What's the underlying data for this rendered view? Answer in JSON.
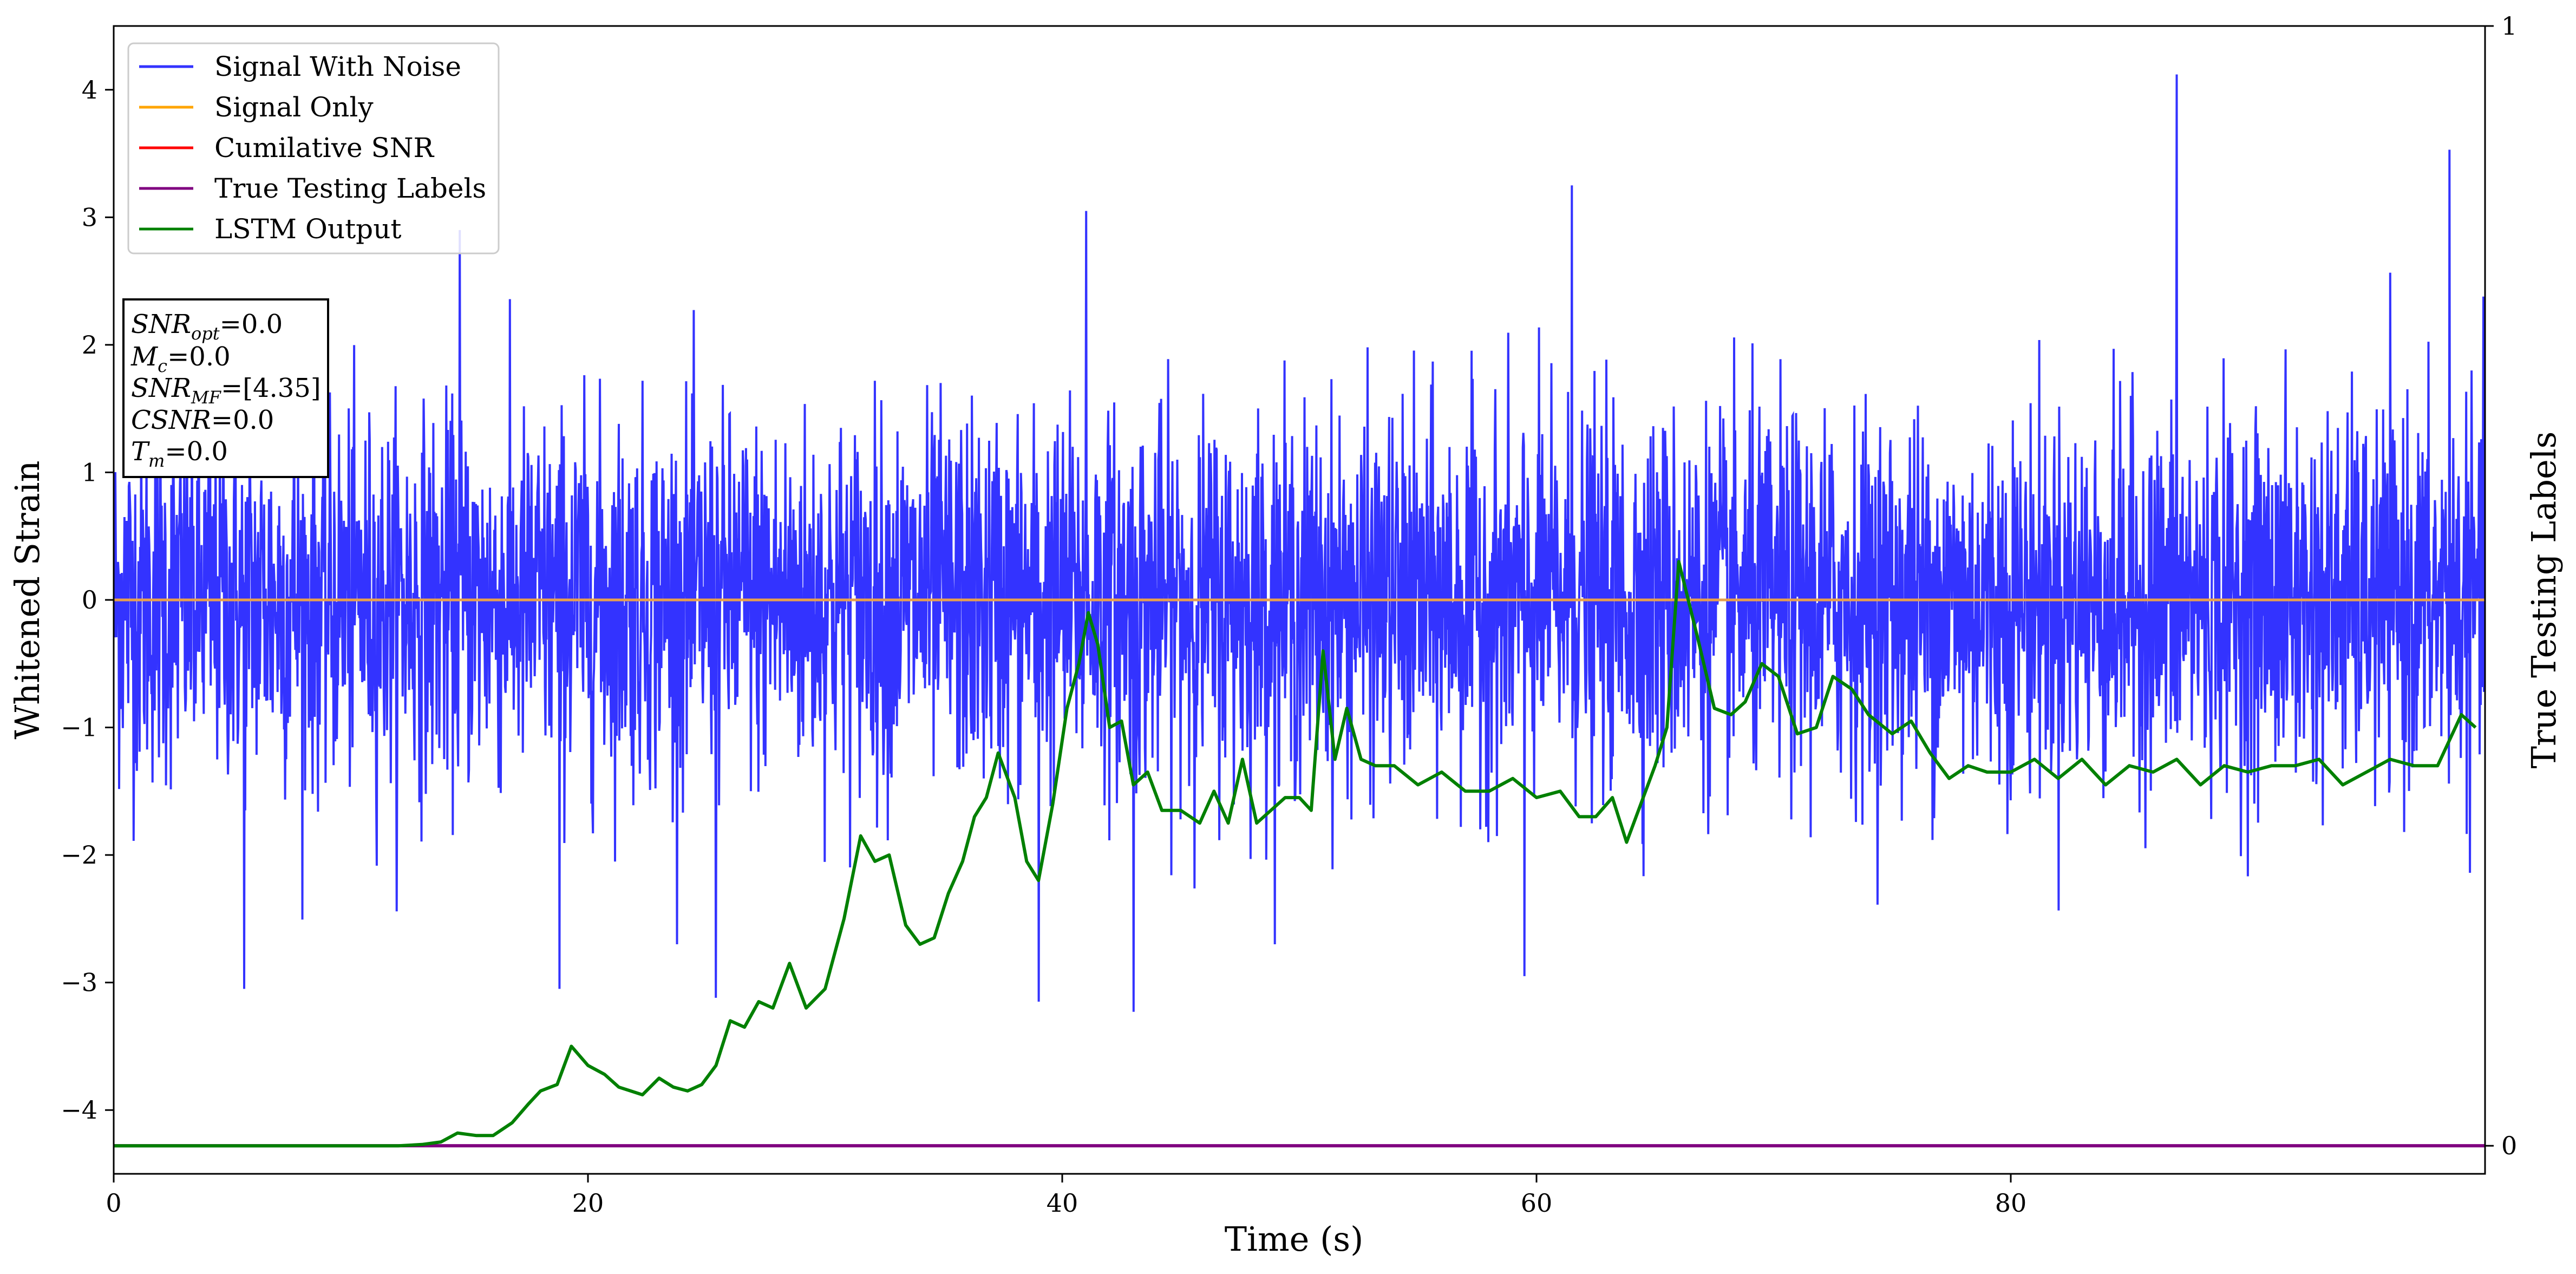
{
  "chart_data": {
    "type": "line",
    "xlabel": "Time (s)",
    "ylabel": "Whitened Strain",
    "y2label": "True Testing Labels",
    "xlim": [
      0,
      100
    ],
    "ylim": [
      -4.5,
      4.5
    ],
    "y2lim": [
      0,
      1
    ],
    "xticks": [
      0,
      20,
      40,
      60,
      80
    ],
    "yticks": [
      -4,
      -3,
      -2,
      -1,
      0,
      1,
      2,
      3,
      4
    ],
    "y2ticks": [
      0,
      1
    ],
    "grid": false,
    "legend_position": "upper-left",
    "legend": [
      {
        "label": "Signal With Noise",
        "color": "#3333ff"
      },
      {
        "label": "Signal Only",
        "color": "#ffa500"
      },
      {
        "label": "Cumilative SNR",
        "color": "#ff0000"
      },
      {
        "label": "True Testing Labels",
        "color": "#800080"
      },
      {
        "label": "LSTM Output",
        "color": "#008000"
      }
    ],
    "info_box": {
      "snr_opt": {
        "base": "SNR",
        "sub": "opt",
        "value": "=0.0"
      },
      "mc": {
        "base": "M",
        "sub": "c",
        "value": "=0.0"
      },
      "snr_mf": {
        "base": "SNR",
        "sub": "MF",
        "value": "=[4.35]"
      },
      "csnr": {
        "base": "CSNR",
        "value": "=0.0"
      },
      "tm": {
        "base": "T",
        "sub": "m",
        "value": "=0.0"
      }
    },
    "series": [
      {
        "name": "Signal With Noise",
        "color": "#3333ff",
        "description_mode": "gaussian-noise",
        "x_range": [
          0,
          100
        ],
        "mean": 0,
        "std": 0.72,
        "notable_peaks": [
          [
            87.0,
            4.12
          ],
          [
            98.5,
            3.53
          ],
          [
            61.5,
            3.25
          ],
          [
            41.0,
            3.05
          ],
          [
            14.6,
            2.9
          ],
          [
            25.4,
            -3.12
          ],
          [
            43.0,
            -3.23
          ],
          [
            5.5,
            -3.05
          ],
          [
            18.8,
            -3.05
          ],
          [
            39.0,
            -3.15
          ],
          [
            59.5,
            -2.95
          ]
        ]
      },
      {
        "name": "Signal Only",
        "color": "#ffa500",
        "x": [
          0,
          100
        ],
        "y": [
          0,
          0
        ]
      },
      {
        "name": "True Testing Labels",
        "color": "#800080",
        "axis": "y2",
        "x": [
          0,
          100
        ],
        "y": [
          0,
          0
        ]
      },
      {
        "name": "LSTM Output",
        "color": "#008000",
        "x": [
          0,
          12.0,
          13.0,
          13.8,
          14.5,
          15.3,
          16.0,
          16.8,
          17.5,
          18.0,
          18.7,
          19.3,
          20.0,
          20.7,
          21.3,
          21.8,
          22.3,
          23.0,
          23.6,
          24.2,
          24.8,
          25.4,
          26.0,
          26.6,
          27.2,
          27.8,
          28.5,
          29.2,
          30.0,
          30.8,
          31.5,
          32.1,
          32.7,
          33.4,
          34.0,
          34.6,
          35.2,
          35.8,
          36.3,
          36.8,
          37.3,
          38.0,
          38.5,
          39.0,
          39.6,
          40.2,
          40.7,
          41.1,
          41.5,
          42.0,
          42.5,
          43.0,
          43.6,
          44.2,
          45.0,
          45.8,
          46.4,
          47.0,
          47.6,
          48.2,
          48.8,
          49.4,
          50.0,
          50.5,
          51.0,
          51.5,
          52.0,
          52.6,
          53.2,
          54.0,
          55.0,
          56.0,
          57.0,
          58.0,
          59.0,
          60.0,
          61.0,
          61.8,
          62.5,
          63.2,
          63.8,
          64.5,
          65.0,
          65.5,
          66.0,
          66.8,
          67.5,
          68.2,
          68.8,
          69.5,
          70.2,
          71.0,
          71.8,
          72.5,
          73.3,
          74.0,
          75.0,
          75.8,
          76.6,
          77.4,
          78.2,
          79.0,
          80.0,
          81.0,
          82.0,
          83.0,
          84.0,
          85.0,
          86.0,
          87.0,
          88.0,
          89.0,
          90.0,
          91.0,
          92.0,
          93.0,
          94.0,
          95.0,
          96.0,
          97.0,
          98.0,
          99.0,
          99.6
        ],
        "y": [
          -4.28,
          -4.28,
          -4.27,
          -4.25,
          -4.18,
          -4.2,
          -4.2,
          -4.1,
          -3.95,
          -3.85,
          -3.8,
          -3.5,
          -3.65,
          -3.72,
          -3.82,
          -3.85,
          -3.88,
          -3.75,
          -3.82,
          -3.85,
          -3.8,
          -3.65,
          -3.3,
          -3.35,
          -3.15,
          -3.2,
          -2.85,
          -3.2,
          -3.05,
          -2.5,
          -1.85,
          -2.05,
          -2.0,
          -2.55,
          -2.7,
          -2.65,
          -2.3,
          -2.05,
          -1.7,
          -1.55,
          -1.2,
          -1.55,
          -2.05,
          -2.2,
          -1.6,
          -0.85,
          -0.5,
          -0.1,
          -0.35,
          -1.0,
          -0.95,
          -1.45,
          -1.35,
          -1.65,
          -1.65,
          -1.75,
          -1.5,
          -1.75,
          -1.25,
          -1.75,
          -1.65,
          -1.55,
          -1.55,
          -1.65,
          -0.4,
          -1.25,
          -0.85,
          -1.25,
          -1.3,
          -1.3,
          -1.45,
          -1.35,
          -1.5,
          -1.5,
          -1.4,
          -1.55,
          -1.5,
          -1.7,
          -1.7,
          -1.55,
          -1.9,
          -1.55,
          -1.3,
          -1.0,
          0.3,
          -0.3,
          -0.85,
          -0.9,
          -0.8,
          -0.5,
          -0.6,
          -1.05,
          -1.0,
          -0.6,
          -0.7,
          -0.9,
          -1.05,
          -0.95,
          -1.2,
          -1.4,
          -1.3,
          -1.35,
          -1.35,
          -1.25,
          -1.4,
          -1.25,
          -1.45,
          -1.3,
          -1.35,
          -1.25,
          -1.45,
          -1.3,
          -1.35,
          -1.3,
          -1.3,
          -1.25,
          -1.45,
          -1.35,
          -1.25,
          -1.3,
          -1.3,
          -0.9,
          -1.0
        ]
      }
    ]
  }
}
